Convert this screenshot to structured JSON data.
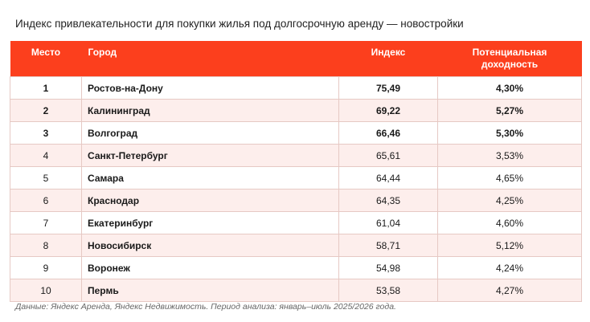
{
  "title": "Индекс привлекательности для покупки жилья под долгосрочную аренду — новостройки",
  "table": {
    "headers": {
      "place": "Место",
      "city": "Город",
      "index": "Индекс",
      "yield_line1": "Потенциальная",
      "yield_line2": "доходность"
    },
    "rows": [
      {
        "place": "1",
        "city": "Ростов-на-Дону",
        "index": "75,49",
        "yield": "4,30%"
      },
      {
        "place": "2",
        "city": "Калининград",
        "index": "69,22",
        "yield": "5,27%"
      },
      {
        "place": "3",
        "city": "Волгоград",
        "index": "66,46",
        "yield": "5,30%"
      },
      {
        "place": "4",
        "city": "Санкт-Петербург",
        "index": "65,61",
        "yield": "3,53%"
      },
      {
        "place": "5",
        "city": "Самара",
        "index": "64,44",
        "yield": "4,65%"
      },
      {
        "place": "6",
        "city": "Краснодар",
        "index": "64,35",
        "yield": "4,25%"
      },
      {
        "place": "7",
        "city": "Екатеринбург",
        "index": "61,04",
        "yield": "4,60%"
      },
      {
        "place": "8",
        "city": "Новосибирск",
        "index": "58,71",
        "yield": "5,12%"
      },
      {
        "place": "9",
        "city": "Воронеж",
        "index": "54,98",
        "yield": "4,24%"
      },
      {
        "place": "10",
        "city": "Пермь",
        "index": "53,58",
        "yield": "4,27%"
      }
    ]
  },
  "footnote": "Данные: Яндекс Аренда, Яндекс Недвижимость. Период анализа: январь–июль 2025/2026 года.",
  "colors": {
    "header_bg": "#fc3f1d",
    "header_text": "#ffffff",
    "row_alt_bg": "#fdeeec",
    "border": "#e6c9c4"
  }
}
